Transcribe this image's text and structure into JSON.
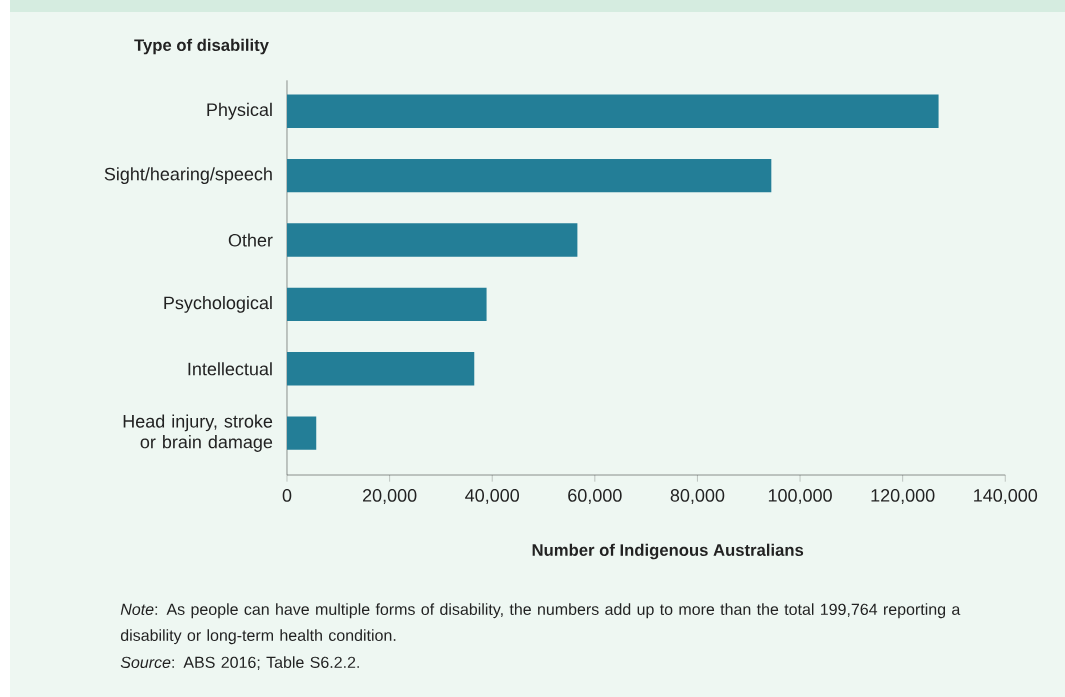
{
  "chart_data": {
    "type": "bar",
    "orientation": "horizontal",
    "ylabel": "Type of disability",
    "xlabel": "Number of Indigenous Australians",
    "categories": [
      "Physical",
      "Sight/hearing/speech",
      "Other",
      "Psychological",
      "Intellectual",
      "Head injury, stroke or brain damage"
    ],
    "values": [
      127000,
      94400,
      56600,
      38900,
      36500,
      5700
    ],
    "color": "#237e97",
    "xlim": [
      0,
      140000
    ],
    "xticks": [
      0,
      {
        "value": 20000,
        "label": "20,000"
      },
      {
        "value": 40000,
        "label": "40,000"
      },
      {
        "value": 60000,
        "label": "60,000"
      },
      {
        "value": 80000,
        "label": "80,000"
      },
      {
        "value": 100000,
        "label": "100,000"
      },
      {
        "value": 120000,
        "label": "120,000"
      },
      {
        "value": 140000,
        "label": "140,000"
      }
    ],
    "annotations": [
      "*Note*: As people can have multiple forms of disability, the numbers add up to more than the total 199,764 reporting a disability or long-term health condition.",
      "*Source*: ABS 2016; Table S6.2.2."
    ]
  }
}
